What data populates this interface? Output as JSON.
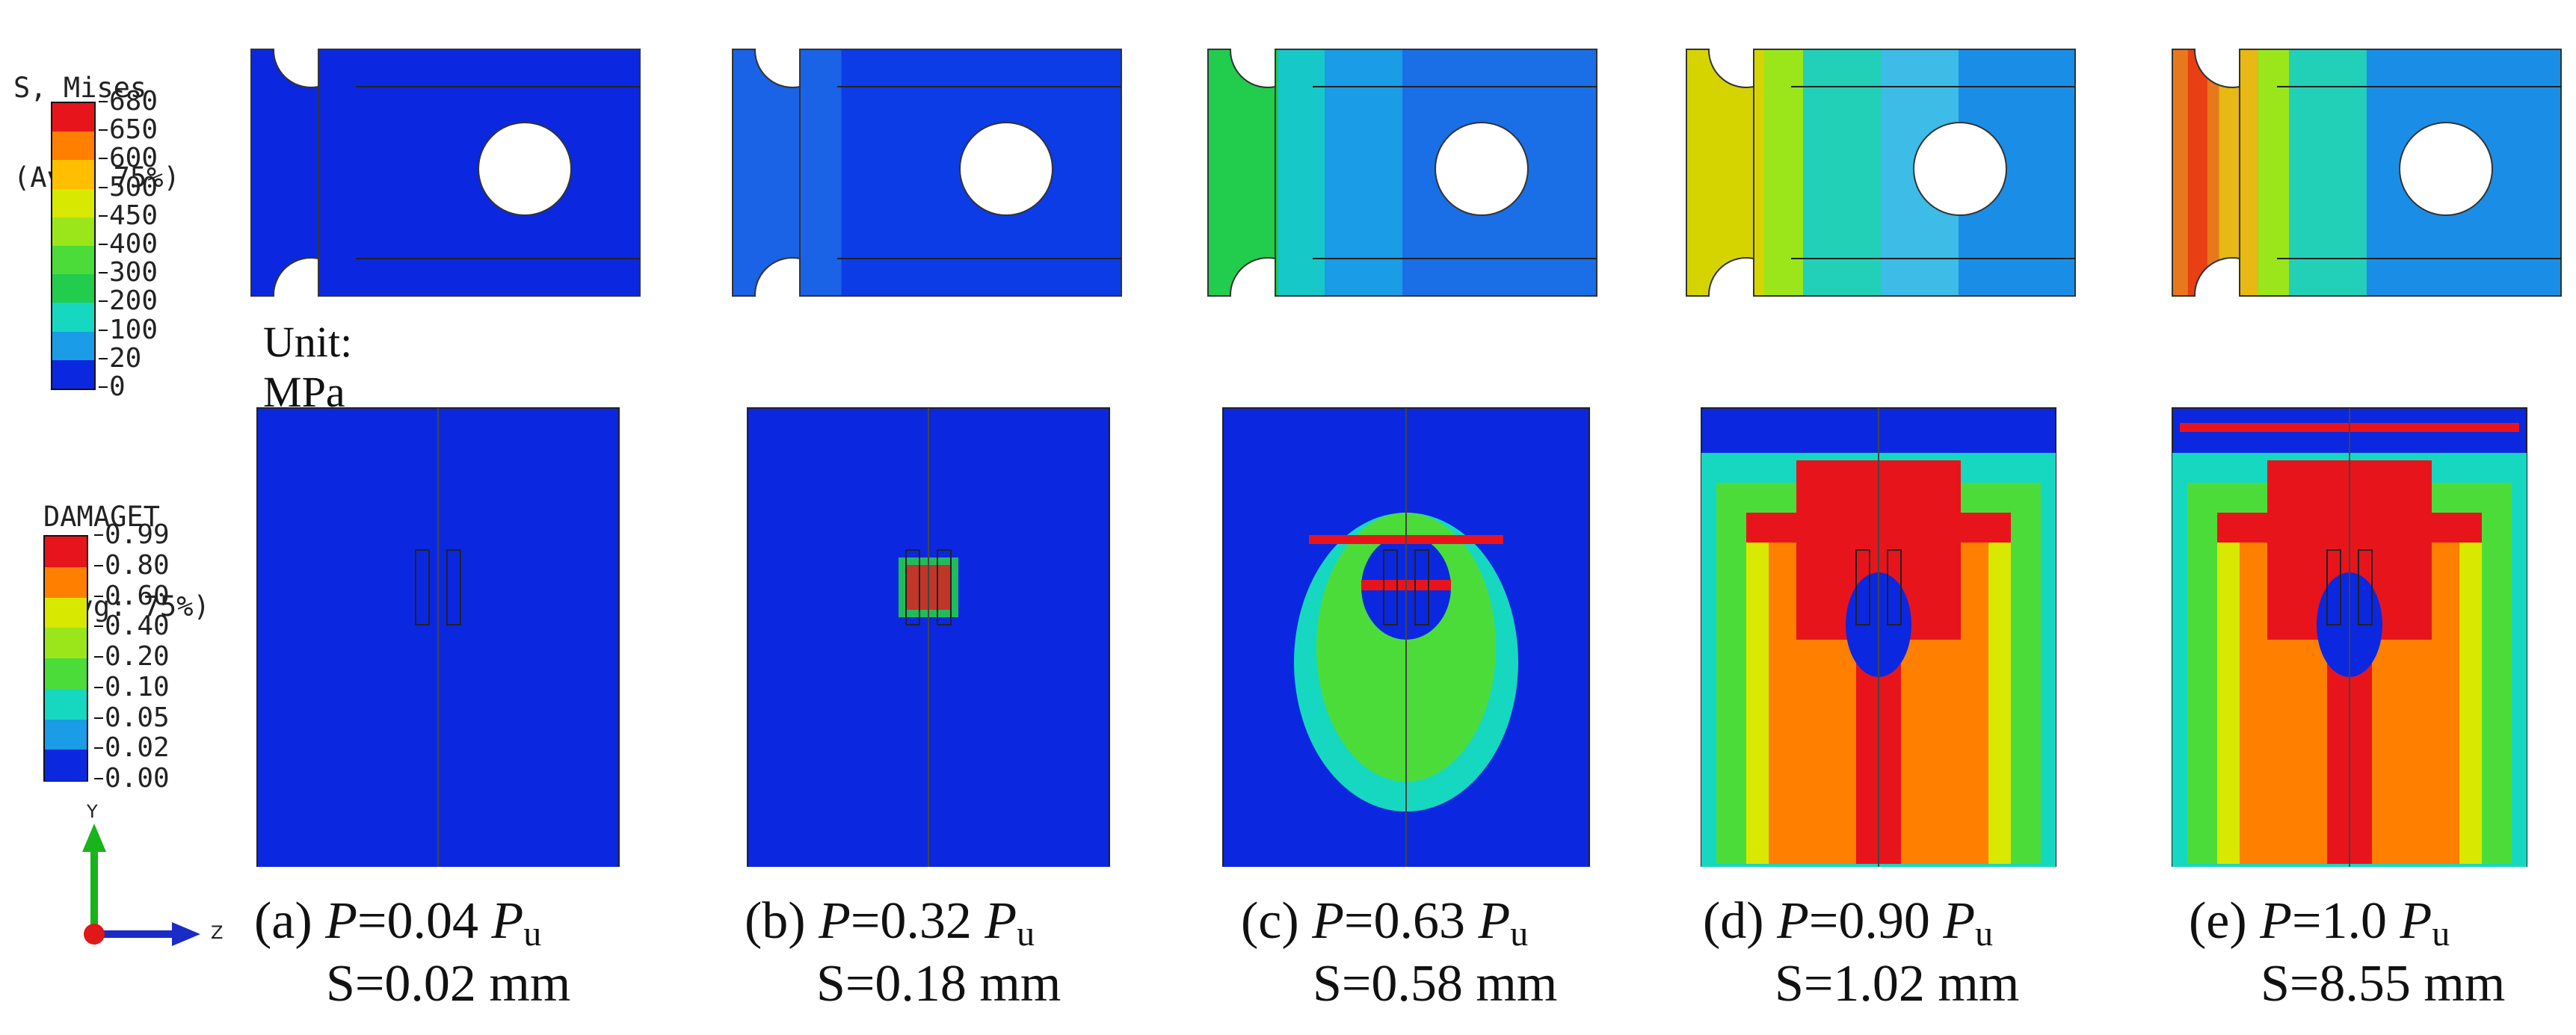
{
  "stress_legend": {
    "title_line1": "S, Mises",
    "title_line2": "(Avg: 75%)",
    "ticks": [
      "680",
      "650",
      "600",
      "500",
      "450",
      "400",
      "300",
      "200",
      "100",
      "20",
      "0"
    ],
    "colors": [
      "#e8141c",
      "#ff7f00",
      "#ffbf00",
      "#d8e800",
      "#9ae61b",
      "#4cdc3a",
      "#22cc4c",
      "#16d8c0",
      "#1a9ce6",
      "#0b28e0"
    ]
  },
  "unit_label": "Unit: MPa",
  "damage_legend": {
    "title_line1": "DAMAGET",
    "title_line2": "(Avg: 75%)",
    "ticks": [
      "0.99",
      "0.80",
      "0.60",
      "0.40",
      "0.20",
      "0.10",
      "0.05",
      "0.02",
      "0.00"
    ],
    "colors": [
      "#e8141c",
      "#ff7f00",
      "#d8e800",
      "#9ae61b",
      "#4cdc3a",
      "#16d8c0",
      "#1a9ce6",
      "#0b28e0"
    ]
  },
  "axis_triad": {
    "y_label": "Y",
    "z_label": "Z"
  },
  "panels": [
    {
      "label": "(a)",
      "p_value": "0.04",
      "s_line": "S=0.02 mm"
    },
    {
      "label": "(b)",
      "p_value": "0.32",
      "s_line": "S=0.18 mm"
    },
    {
      "label": "(c)",
      "p_value": "0.63",
      "s_line": "S=0.58 mm"
    },
    {
      "label": "(d)",
      "p_value": "0.90",
      "s_line": "S=1.02 mm"
    },
    {
      "label": "(e)",
      "p_value": "1.0",
      "s_line": "S=8.55 mm"
    }
  ],
  "caption_symbols": {
    "p": "P",
    "eq": "=",
    "pu": "P",
    "sub": "u"
  },
  "stress_fill_levels": [
    "#0b28e0",
    "#1a5ee6",
    "#16a8d8",
    "#d6d400",
    "#d85c14"
  ],
  "damage_spread_levels": [
    0.0,
    0.08,
    0.45,
    0.9,
    1.0
  ]
}
